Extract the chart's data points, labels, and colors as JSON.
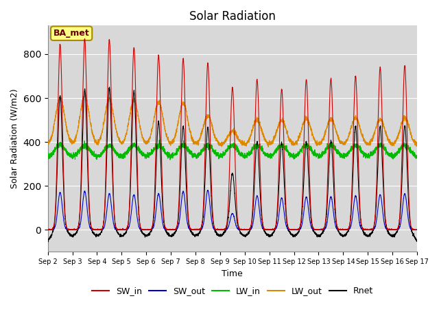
{
  "title": "Solar Radiation",
  "ylabel": "Solar Radiation (W/m2)",
  "xlabel": "Time",
  "ylim": [
    -100,
    930
  ],
  "xlim": [
    0,
    360
  ],
  "annotation": "BA_met",
  "legend": [
    "SW_in",
    "SW_out",
    "LW_in",
    "LW_out",
    "Rnet"
  ],
  "colors": {
    "SW_in": "#cc0000",
    "SW_out": "#0000cc",
    "LW_in": "#00bb00",
    "LW_out": "#dd8800",
    "Rnet": "#000000"
  },
  "xtick_labels": [
    "Sep 2",
    "Sep 3",
    "Sep 4",
    "Sep 5",
    "Sep 6",
    "Sep 7",
    "Sep 8",
    "Sep 9",
    "Sep 10",
    "Sep 11",
    "Sep 12",
    "Sep 13",
    "Sep 14",
    "Sep 15",
    "Sep 16",
    "Sep 17"
  ],
  "xtick_positions": [
    0,
    24,
    48,
    72,
    96,
    120,
    144,
    168,
    192,
    216,
    240,
    264,
    288,
    312,
    336,
    360
  ],
  "background_color": "#d8d8d8",
  "sw_in_peaks": [
    845,
    870,
    865,
    830,
    795,
    780,
    760,
    650,
    685,
    640,
    685,
    690,
    700,
    740,
    750
  ],
  "sw_out_peaks": [
    170,
    175,
    165,
    160,
    165,
    175,
    180,
    75,
    155,
    145,
    150,
    150,
    155,
    160,
    165
  ],
  "rnet_peaks": [
    580,
    610,
    615,
    600,
    460,
    440,
    435,
    225,
    370,
    365,
    370,
    375,
    440,
    440,
    445
  ],
  "lw_out_peaks": [
    600,
    610,
    595,
    590,
    580,
    575,
    520,
    450,
    500,
    500,
    505,
    505,
    510,
    505,
    510
  ],
  "lw_in_base": 330,
  "lw_out_base": 385,
  "night_rnet": -75,
  "hours_per_day": 24,
  "total_hours": 360,
  "n_days": 15
}
